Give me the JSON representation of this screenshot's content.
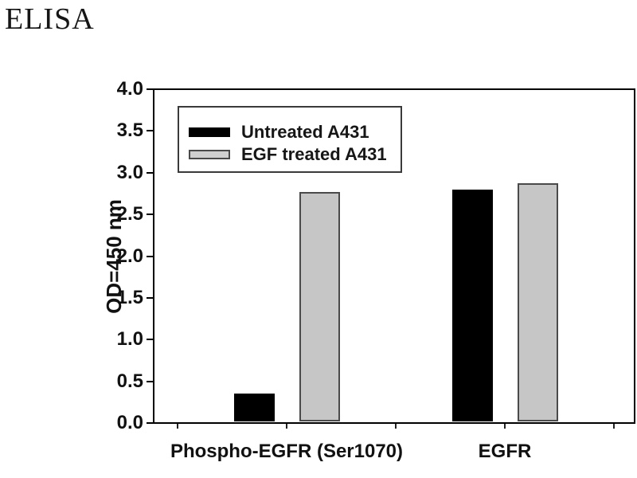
{
  "figure": {
    "title": "ELISA"
  },
  "chart_data": {
    "type": "bar",
    "title": "ELISA",
    "categories": [
      "Phospho-EGFR (Ser1070)",
      "EGFR"
    ],
    "series": [
      {
        "name": "Untreated A431",
        "color": "#000000",
        "border_color": "#000000",
        "values": [
          0.35,
          2.8
        ]
      },
      {
        "name": "EGF treated A431",
        "color": "#c6c6c6",
        "border_color": "#4a4a4a",
        "values": [
          2.77,
          2.87
        ]
      }
    ],
    "xlabel": "",
    "ylabel": "OD=450 nm",
    "ylim": [
      0.0,
      4.0
    ],
    "ytick_step": 0.5,
    "ytick_labels": [
      "0.0",
      "0.5",
      "1.0",
      "1.5",
      "2.0",
      "2.5",
      "3.0",
      "3.5",
      "4.0"
    ],
    "grid": false,
    "legend": {
      "position": "top-left-inside",
      "swatch_colors": [
        "#000000",
        "#d0d0d0"
      ],
      "entries": [
        "Untreated A431",
        "EGF treated A431"
      ]
    }
  }
}
